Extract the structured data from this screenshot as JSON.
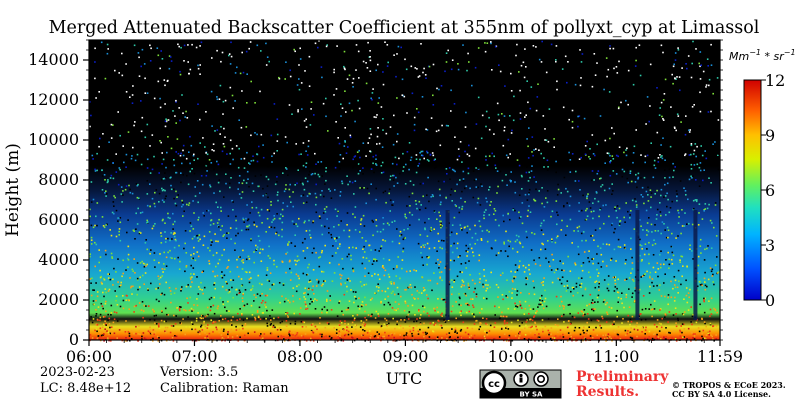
{
  "chart_data": {
    "type": "heatmap",
    "title": "Merged Attenuated Backscatter Coefficient at 355nm of pollyxt_cyp at Limassol",
    "xlabel": "UTC",
    "ylabel": "Height (m)",
    "x_ticks": [
      "06:00",
      "07:00",
      "08:00",
      "09:00",
      "10:00",
      "11:00",
      "11:59"
    ],
    "x_tick_hours": [
      6,
      7,
      8,
      9,
      10,
      11,
      11.983
    ],
    "xlim": [
      6,
      11.983
    ],
    "y_ticks": [
      0,
      2000,
      4000,
      6000,
      8000,
      10000,
      12000,
      14000
    ],
    "ylim": [
      0,
      15000
    ],
    "colorbar": {
      "unit_label": "Mm⁻¹ * sr⁻¹",
      "unit_base_1": "Mm",
      "unit_exp_1": "−1",
      "unit_mid": " * sr",
      "unit_exp_2": "−1",
      "ticks": [
        0,
        3,
        6,
        9,
        12
      ],
      "range": [
        0,
        12
      ],
      "colormap": "jet",
      "colors": [
        "#0a1fc7",
        "#1a8fd8",
        "#2ec9a8",
        "#7ee03a",
        "#e8e61a",
        "#f5a21a",
        "#ef3a14",
        "#c8101a"
      ]
    },
    "background_color": "#000000",
    "approx_profile": [
      {
        "height_m": 150,
        "value": 11.5
      },
      {
        "height_m": 600,
        "value": 9.5
      },
      {
        "height_m": 1300,
        "value": 5.5
      },
      {
        "height_m": 2000,
        "value": 5.0
      },
      {
        "height_m": 3000,
        "value": 3.5
      },
      {
        "height_m": 4000,
        "value": 2.5
      },
      {
        "height_m": 5000,
        "value": 2.0
      },
      {
        "height_m": 6000,
        "value": 1.2
      },
      {
        "height_m": 7500,
        "value": 0.5
      },
      {
        "height_m": 9000,
        "value": 0.0
      }
    ],
    "signal_gaps_hours": [
      9.4,
      11.2,
      11.75
    ]
  },
  "footer": {
    "date": "2023-02-23",
    "lc": "LC: 8.48e+12",
    "version": "Version: 3.5",
    "calibration": "Calibration: Raman",
    "license_badge_text": "BY  SA",
    "preliminary_line1": "Preliminary",
    "preliminary_line2": "Results.",
    "copyright_line1": "© TROPOS & ECoE 2023.",
    "copyright_line2": "CC BY SA 4.0 License."
  }
}
